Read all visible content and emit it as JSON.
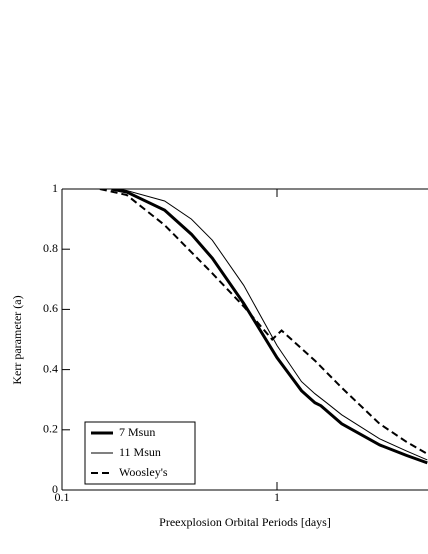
{
  "chart_data": {
    "type": "line",
    "x_label": "Preexplosion Orbital Periods [days]",
    "y_label": "Kerr parameter (a)",
    "xlog": true,
    "xlim": [
      0.1,
      5
    ],
    "xticks": [
      0.1,
      1
    ],
    "ylim": [
      0,
      1
    ],
    "yticks": [
      0,
      0.2,
      0.4,
      0.6,
      0.8,
      1
    ],
    "legend": "lower left",
    "series": [
      {
        "name": "7 Msun",
        "color": "#000000",
        "width": 3,
        "dash": "solid",
        "x": [
          0.17,
          0.2,
          0.3,
          0.4,
          0.5,
          0.7,
          1,
          1.3,
          1.5,
          1.6,
          2,
          3,
          4,
          5
        ],
        "values": [
          1,
          0.99,
          0.93,
          0.85,
          0.77,
          0.62,
          0.44,
          0.33,
          0.29,
          0.28,
          0.22,
          0.15,
          0.115,
          0.09
        ]
      },
      {
        "name": "11 Msun",
        "color": "#000000",
        "width": 1,
        "dash": "solid",
        "x": [
          0.18,
          0.2,
          0.3,
          0.4,
          0.5,
          0.7,
          1,
          1.3,
          1.5,
          1.7,
          2,
          3,
          4,
          5
        ],
        "values": [
          1,
          0.995,
          0.96,
          0.9,
          0.83,
          0.68,
          0.48,
          0.36,
          0.32,
          0.29,
          0.25,
          0.17,
          0.13,
          0.1
        ]
      },
      {
        "name": "Woosley's",
        "color": "#000000",
        "width": 2,
        "dash": "dashed",
        "x": [
          0.15,
          0.2,
          0.3,
          0.4,
          0.5,
          0.7,
          0.95,
          1.05,
          1.5,
          2,
          3,
          4,
          5
        ],
        "values": [
          1,
          0.98,
          0.88,
          0.79,
          0.72,
          0.61,
          0.5,
          0.53,
          0.43,
          0.34,
          0.22,
          0.16,
          0.12
        ]
      }
    ]
  }
}
